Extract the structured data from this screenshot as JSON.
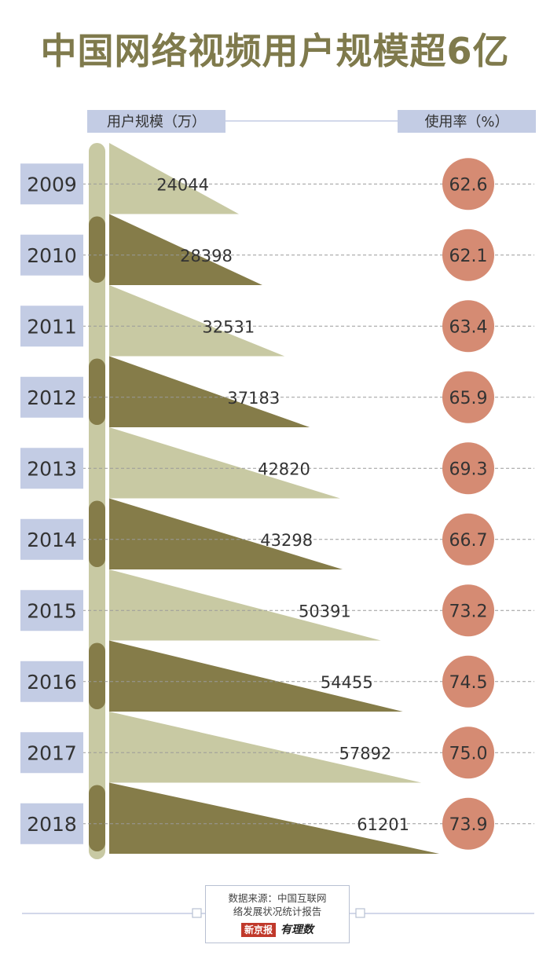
{
  "title": "中国网络视频用户规模超6亿",
  "left_header": "用户规模（万）",
  "right_header": "使用率（%）",
  "source_line1": "数据来源：中国互联网",
  "source_line2": "络发展状况统计报告",
  "brand_name": "新京报",
  "brand_sub": "有理数",
  "colors": {
    "light": "#c8c9a3",
    "dark": "#857c49",
    "circle": "#d58b73",
    "year_box": "#c3cce4",
    "title": "#7f7a4c"
  },
  "chart_data": {
    "type": "bar",
    "title": "中国网络视频用户规模超6亿",
    "categories": [
      "2009",
      "2010",
      "2011",
      "2012",
      "2013",
      "2014",
      "2015",
      "2016",
      "2017",
      "2018"
    ],
    "series": [
      {
        "name": "用户规模（万）",
        "values": [
          24044,
          28398,
          32531,
          37183,
          42820,
          43298,
          50391,
          54455,
          57892,
          61201
        ]
      },
      {
        "name": "使用率（%）",
        "values": [
          "62.6",
          "62.1",
          "63.4",
          "65.9",
          "69.3",
          "66.7",
          "73.2",
          "74.5",
          "75.0",
          "73.9"
        ]
      }
    ],
    "xlabel": "",
    "ylabel": ""
  }
}
